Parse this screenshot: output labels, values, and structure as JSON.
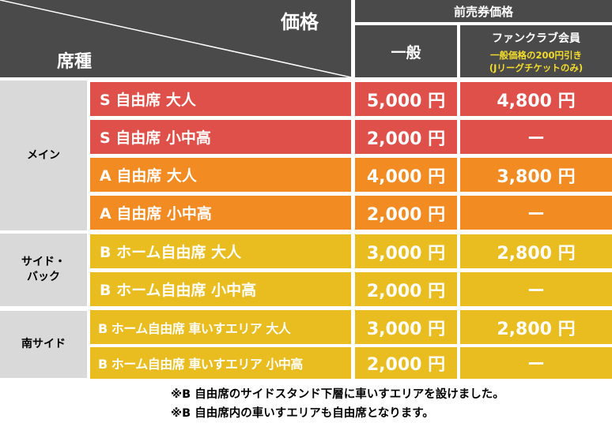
{
  "header": {
    "price_label": "価格",
    "seat_type_label": "席種",
    "advance_label": "前売券価格",
    "general_label": "一般",
    "fanclub_label": "ファンクラブ会員",
    "fanclub_note_1": "一般価格の200円引き",
    "fanclub_note_2": "(Jリーグチケットのみ)"
  },
  "groups": [
    {
      "label": "メイン"
    },
    {
      "label_line1": "サイド・",
      "label_line2": "バック"
    },
    {
      "label": "南サイド"
    }
  ],
  "rows": [
    {
      "seat": "S 自由席 大人",
      "general": "5,000 円",
      "fanclub": "4,800 円",
      "color": "#e0504a"
    },
    {
      "seat": "S 自由席 小中高",
      "general": "2,000 円",
      "fanclub": "ー",
      "color": "#e0504a"
    },
    {
      "seat": "A 自由席 大人",
      "general": "4,000 円",
      "fanclub": "3,800 円",
      "color": "#f18b22"
    },
    {
      "seat": "A 自由席 小中高",
      "general": "2,000 円",
      "fanclub": "ー",
      "color": "#f18b22"
    },
    {
      "seat": "B ホーム自由席 大人",
      "general": "3,000 円",
      "fanclub": "2,800 円",
      "color": "#e9bd1f"
    },
    {
      "seat": "B ホーム自由席 小中高",
      "general": "2,000 円",
      "fanclub": "ー",
      "color": "#e9bd1f"
    },
    {
      "seat": "B ホーム自由席 車いすエリア 大人",
      "general": "3,000 円",
      "fanclub": "2,800 円",
      "color": "#e9bd1f"
    },
    {
      "seat": "B ホーム自由席 車いすエリア 小中高",
      "general": "2,000 円",
      "fanclub": "ー",
      "color": "#e9bd1f"
    }
  ],
  "notes": [
    "※B 自由席のサイドスタンド下層に車いすエリアを設けました。",
    "※B 自由席内の車いすエリアも自由席となります。"
  ],
  "colors": {
    "header": "#4a4a4a",
    "group": "#d9d9d9",
    "s_seat": "#e0504a",
    "a_seat": "#f18b22",
    "b_seat": "#e9bd1f"
  }
}
